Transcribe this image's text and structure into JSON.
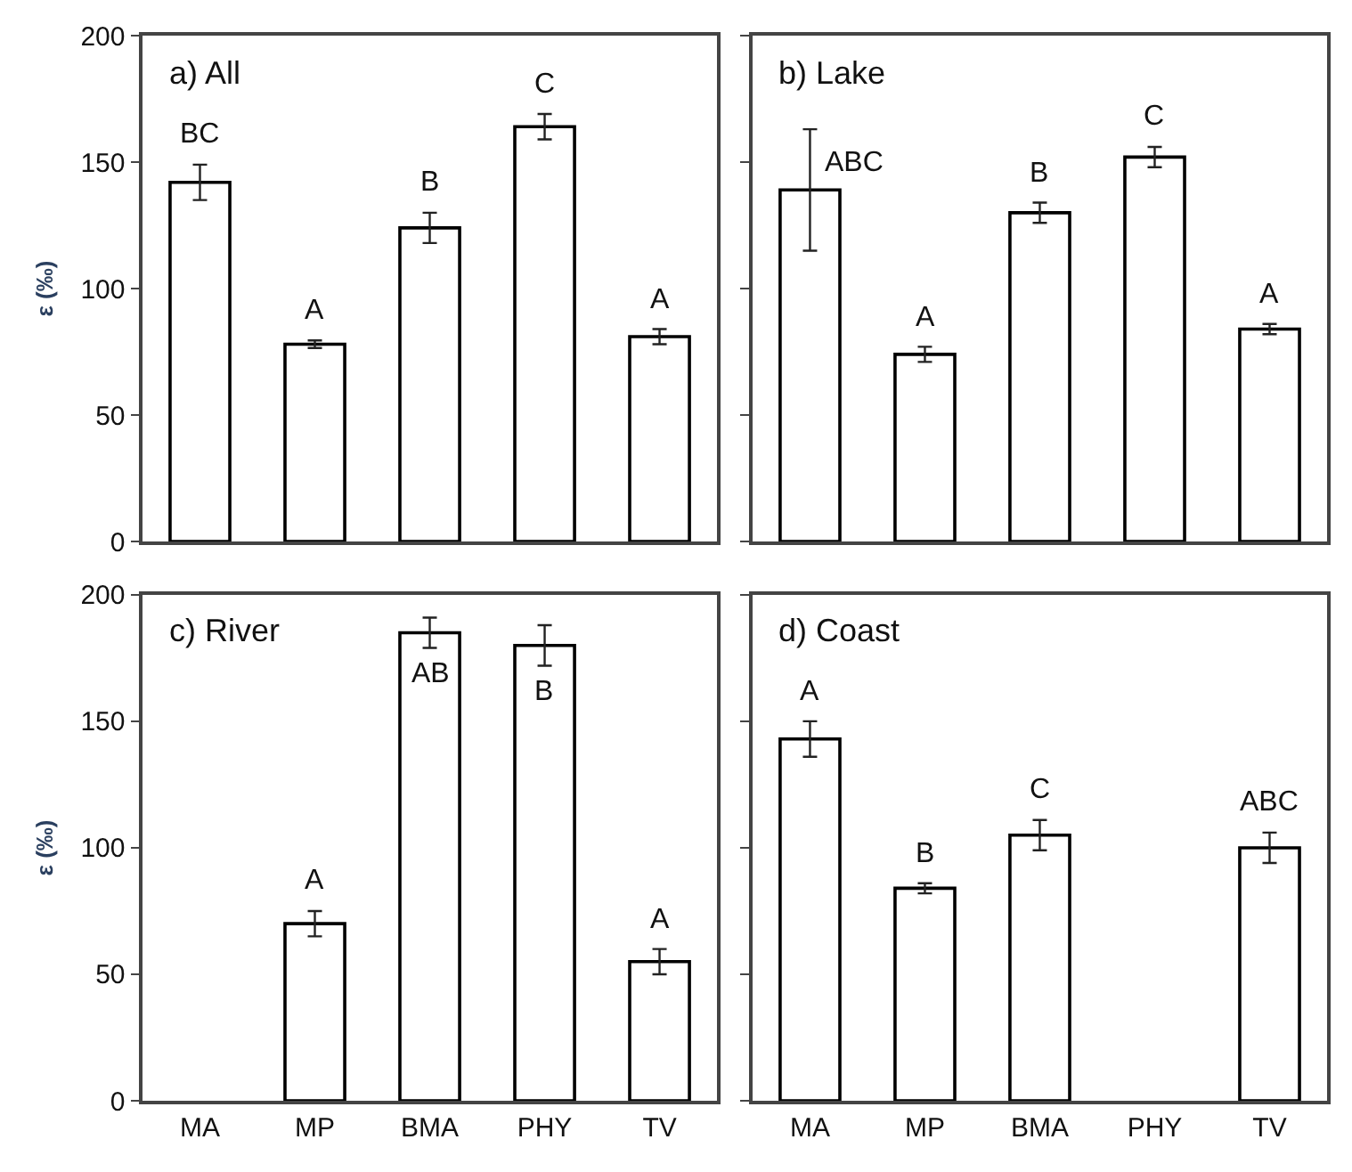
{
  "chart_data": [
    {
      "type": "bar",
      "title": "a) All",
      "ylabel": "ε (‰)",
      "categories": [
        "MA",
        "MP",
        "BMA",
        "PHY",
        "TV"
      ],
      "values": [
        142,
        78,
        124,
        164,
        81
      ],
      "errors": [
        7,
        1.5,
        6,
        5,
        3
      ],
      "color": "#ffffff",
      "ylim": [
        0,
        200
      ],
      "yticks": [
        0,
        50,
        100,
        150,
        200
      ],
      "tick_labels": "y",
      "annotations": [
        {
          "text": "BC",
          "x": "MA",
          "y": 142
        },
        {
          "text": "A",
          "x": "MP",
          "y": 78
        },
        {
          "text": "B",
          "x": "BMA",
          "y": 124
        },
        {
          "text": "C",
          "x": "PHY",
          "y": 164
        },
        {
          "text": "A",
          "x": "TV",
          "y": 81
        }
      ]
    },
    {
      "type": "bar",
      "title": "b) Lake",
      "categories": [
        "MA",
        "MP",
        "BMA",
        "PHY",
        "TV"
      ],
      "values": [
        139,
        74,
        130,
        152,
        84
      ],
      "errors": [
        24,
        3,
        4,
        4,
        2
      ],
      "color": "#ffffff",
      "ylim": [
        0,
        200
      ],
      "yticks": [
        0,
        50,
        100,
        150,
        200
      ],
      "tick_labels": false,
      "annotations": [
        {
          "text": "ABC",
          "x": "MA",
          "y": 139
        },
        {
          "text": "A",
          "x": "MP",
          "y": 74
        },
        {
          "text": "B",
          "x": "BMA",
          "y": 130
        },
        {
          "text": "C",
          "x": "PHY",
          "y": 152
        },
        {
          "text": "A",
          "x": "TV",
          "y": 84
        }
      ]
    },
    {
      "type": "bar",
      "title": "c) River",
      "ylabel": "ε (‰)",
      "categories": [
        "MA",
        "MP",
        "BMA",
        "PHY",
        "TV"
      ],
      "values": [
        null,
        70,
        185,
        180,
        55
      ],
      "errors": [
        null,
        5,
        6,
        8,
        5
      ],
      "color": "#ffffff",
      "ylim": [
        0,
        200
      ],
      "yticks": [
        0,
        50,
        100,
        150,
        200
      ],
      "annotations": [
        {
          "text": "A",
          "x": "MP",
          "y": 70
        },
        {
          "text": "AB",
          "x": "BMA",
          "y": 185
        },
        {
          "text": "B",
          "x": "PHY",
          "y": 180
        },
        {
          "text": "A",
          "x": "TV",
          "y": 55
        }
      ]
    },
    {
      "type": "bar",
      "title": "d) Coast",
      "categories": [
        "MA",
        "MP",
        "BMA",
        "PHY",
        "TV"
      ],
      "values": [
        143,
        84,
        105,
        null,
        100
      ],
      "errors": [
        7,
        2,
        6,
        null,
        6
      ],
      "color": "#ffffff",
      "ylim": [
        0,
        200
      ],
      "yticks": [
        0,
        50,
        100,
        150,
        200
      ],
      "tick_labels": "x",
      "annotations": [
        {
          "text": "A",
          "x": "MA",
          "y": 143
        },
        {
          "text": "B",
          "x": "MP",
          "y": 84
        },
        {
          "text": "C",
          "x": "BMA",
          "y": 105
        },
        {
          "text": "ABC",
          "x": "TV",
          "y": 100
        }
      ]
    }
  ]
}
